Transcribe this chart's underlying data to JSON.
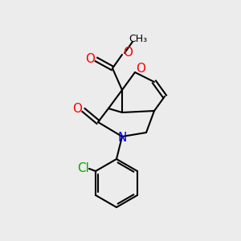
{
  "bg_color": "#ececec",
  "bond_color": "#000000",
  "bond_width": 1.5,
  "atom_colors": {
    "O": "#ff0000",
    "N": "#0000ff",
    "Cl": "#00aa00",
    "C": "#000000"
  },
  "font_size": 9,
  "fig_size": [
    3.0,
    3.0
  ],
  "dpi": 100
}
